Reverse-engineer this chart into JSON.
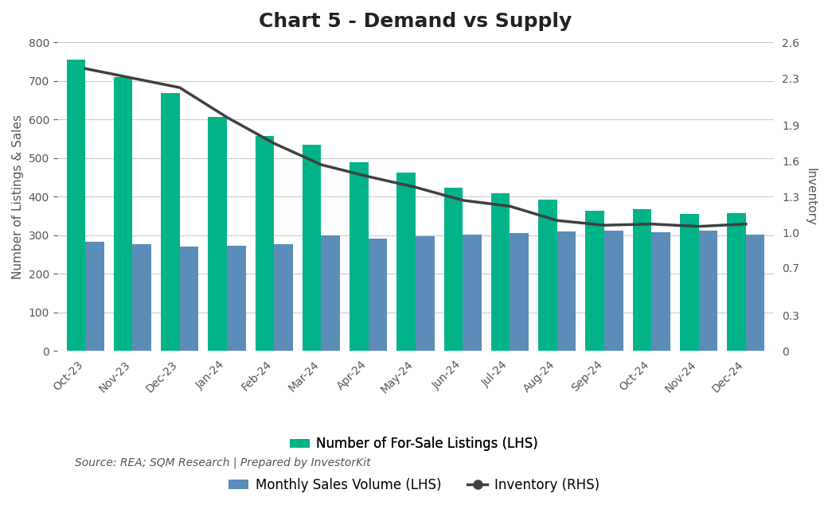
{
  "title": "Chart 5 - Demand vs Supply",
  "source_text": "Source: REA; SQM Research | Prepared by InvestorKit",
  "categories": [
    "Oct-23",
    "Nov-23",
    "Dec-23",
    "Jan-24",
    "Feb-24",
    "Mar-24",
    "Apr-24",
    "May-24",
    "Jun-24",
    "Jul-24",
    "Aug-24",
    "Sep-24",
    "Oct-24",
    "Nov-24",
    "Dec-24"
  ],
  "listings": [
    755,
    710,
    668,
    607,
    558,
    535,
    490,
    463,
    423,
    410,
    392,
    363,
    368,
    355,
    358
  ],
  "sales": [
    283,
    277,
    271,
    272,
    278,
    300,
    292,
    298,
    302,
    305,
    310,
    313,
    308,
    313,
    302
  ],
  "inventory": [
    2.38,
    2.3,
    2.22,
    1.97,
    1.75,
    1.57,
    1.47,
    1.38,
    1.27,
    1.22,
    1.1,
    1.06,
    1.07,
    1.05,
    1.07
  ],
  "bar_color_listings": "#00B388",
  "bar_color_sales": "#5B8DB8",
  "line_color": "#404040",
  "ylabel_left": "Number of Listings & Sales",
  "ylabel_right": "Inventory",
  "ylim_left": [
    0,
    800
  ],
  "ylim_right": [
    0,
    2.6
  ],
  "yticks_left": [
    0,
    100,
    200,
    300,
    400,
    500,
    600,
    700,
    800
  ],
  "yticks_right": [
    0,
    0.3,
    0.7,
    1.0,
    1.3,
    1.6,
    1.9,
    2.3,
    2.6
  ],
  "legend_labels": [
    "Number of For-Sale Listings (LHS)",
    "Monthly Sales Volume (LHS)",
    "Inventory (RHS)"
  ],
  "title_fontsize": 18,
  "label_fontsize": 11,
  "tick_fontsize": 10,
  "source_fontsize": 10,
  "background_color": "#ffffff",
  "grid_color": "#cccccc"
}
